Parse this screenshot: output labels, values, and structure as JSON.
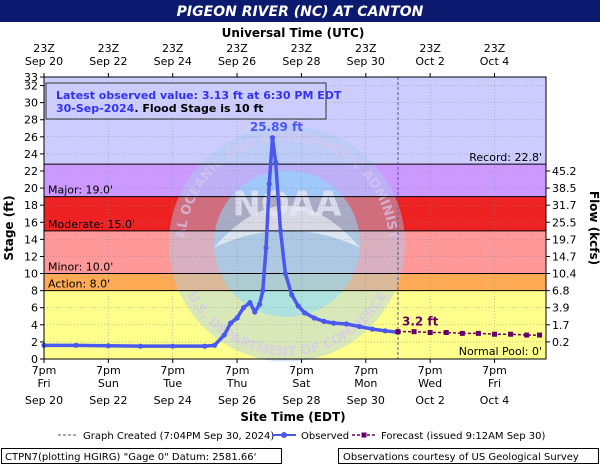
{
  "title": "PIGEON RIVER (NC) AT CANTON",
  "colors": {
    "title_bg": "#0b1a6e",
    "plot_bg": "#ccccff",
    "record_band": "#cc99ff",
    "major_band": "#ee2222",
    "moderate_band": "#ff9999",
    "minor_band": "#ffaa55",
    "action_band": "#ffff66",
    "observed": "#4a58ee",
    "forecast": "#660066"
  },
  "chart_data": {
    "type": "line",
    "title": "PIGEON RIVER (NC) AT CANTON",
    "top_axis_title": "Universal Time (UTC)",
    "xlabel": "Site Time (EDT)",
    "ylabel": "Stage (ft)",
    "y2label": "Flow (kcfs)",
    "ylim": [
      0,
      33
    ],
    "y_ticks": [
      0,
      2,
      4,
      6,
      8,
      10,
      12,
      14,
      16,
      18,
      20,
      22,
      24,
      26,
      28,
      30,
      32,
      33
    ],
    "flow_ticks": [
      {
        "stage": 2,
        "label": "0.2"
      },
      {
        "stage": 4,
        "label": "1.7"
      },
      {
        "stage": 6,
        "label": "3.9"
      },
      {
        "stage": 8,
        "label": "6.8"
      },
      {
        "stage": 10,
        "label": "10.4"
      },
      {
        "stage": 12,
        "label": "14.7"
      },
      {
        "stage": 14,
        "label": "19.7"
      },
      {
        "stage": 16,
        "label": "25.5"
      },
      {
        "stage": 18,
        "label": "31.7"
      },
      {
        "stage": 20,
        "label": "38.5"
      },
      {
        "stage": 22,
        "label": "45.2"
      }
    ],
    "bottom_ticks": [
      {
        "l1": "7pm",
        "l2": "Fri",
        "l3": "Sep 20"
      },
      {
        "l1": "7pm",
        "l2": "Sun",
        "l3": "Sep 22"
      },
      {
        "l1": "7pm",
        "l2": "Tue",
        "l3": "Sep 24"
      },
      {
        "l1": "7pm",
        "l2": "Thu",
        "l3": "Sep 26"
      },
      {
        "l1": "7pm",
        "l2": "Sat",
        "l3": "Sep 28"
      },
      {
        "l1": "7pm",
        "l2": "Mon",
        "l3": "Sep 30"
      },
      {
        "l1": "7pm",
        "l2": "Wed",
        "l3": "Oct 2"
      },
      {
        "l1": "7pm",
        "l2": "Fri",
        "l3": "Oct 4"
      }
    ],
    "top_ticks": [
      {
        "l1": "23Z",
        "l2": "Sep 20"
      },
      {
        "l1": "23Z",
        "l2": "Sep 22"
      },
      {
        "l1": "23Z",
        "l2": "Sep 24"
      },
      {
        "l1": "23Z",
        "l2": "Sep 26"
      },
      {
        "l1": "23Z",
        "l2": "Sep 28"
      },
      {
        "l1": "23Z",
        "l2": "Sep 30"
      },
      {
        "l1": "23Z",
        "l2": "Oct 2"
      },
      {
        "l1": "23Z",
        "l2": "Oct 4"
      }
    ],
    "x_range_days": [
      0,
      15.6
    ],
    "stages": {
      "record": {
        "value": 22.8,
        "label": "Record: 22.8'"
      },
      "major": {
        "value": 19.0,
        "label": "Major: 19.0'"
      },
      "moderate": {
        "value": 15.0,
        "label": "Moderate: 15.0'"
      },
      "minor": {
        "value": 10.0,
        "label": "Minor: 10.0'"
      },
      "action": {
        "value": 8.0,
        "label": "Action: 8.0'"
      },
      "normal_pool": {
        "value": 0,
        "label": "Normal Pool: 0'"
      }
    },
    "observed": {
      "name": "Observed",
      "x_days": [
        0,
        1,
        2,
        3,
        4,
        5,
        5.3,
        5.6,
        5.8,
        6.0,
        6.2,
        6.4,
        6.55,
        6.7,
        6.8,
        6.9,
        7.0,
        7.1,
        7.2,
        7.35,
        7.5,
        7.7,
        7.9,
        8.1,
        8.4,
        8.7,
        9.0,
        9.4,
        9.8,
        10.2,
        10.6,
        11.0
      ],
      "stage": [
        1.6,
        1.6,
        1.55,
        1.5,
        1.5,
        1.5,
        1.6,
        2.8,
        4.2,
        4.8,
        6.0,
        6.6,
        5.5,
        6.4,
        8.0,
        13.0,
        20.5,
        25.89,
        23.0,
        15.0,
        10.0,
        7.5,
        6.2,
        5.4,
        4.8,
        4.4,
        4.2,
        4.1,
        3.8,
        3.5,
        3.3,
        3.13
      ]
    },
    "forecast": {
      "name": "Forecast (issued 9:12AM Sep 30)",
      "x_days": [
        11.0,
        11.5,
        12.0,
        12.5,
        13.0,
        13.5,
        14.0,
        14.5,
        15.0,
        15.4
      ],
      "stage": [
        3.2,
        3.2,
        3.1,
        3.1,
        3.0,
        3.0,
        2.9,
        2.9,
        2.8,
        2.8
      ]
    },
    "created_x_days": 11.0,
    "peak_label": "25.89 ft",
    "forecast_label": "3.2 ft",
    "info_line1": "Latest observed value: 3.13 ft at 6:30 PM EDT",
    "info_date": "30-Sep-2024",
    "info_flood": ". Flood Stage is 10 ft"
  },
  "legend": {
    "created": "Graph Created (7:04PM Sep 30, 2024)",
    "observed": "Observed",
    "forecast": "Forecast (issued 9:12AM Sep 30)"
  },
  "footer": {
    "left": "CTPN7(plotting HGIRG) \"Gage 0\" Datum: 2581.66'",
    "right": "Observations courtesy of US Geological Survey"
  },
  "watermark": {
    "ring_text": "NATIONAL OCEANIC AND ATMOSPHERIC ADMINISTRATION",
    "ring_text_bottom": "U.S. DEPARTMENT OF COMMERCE",
    "center": "NOAA"
  }
}
